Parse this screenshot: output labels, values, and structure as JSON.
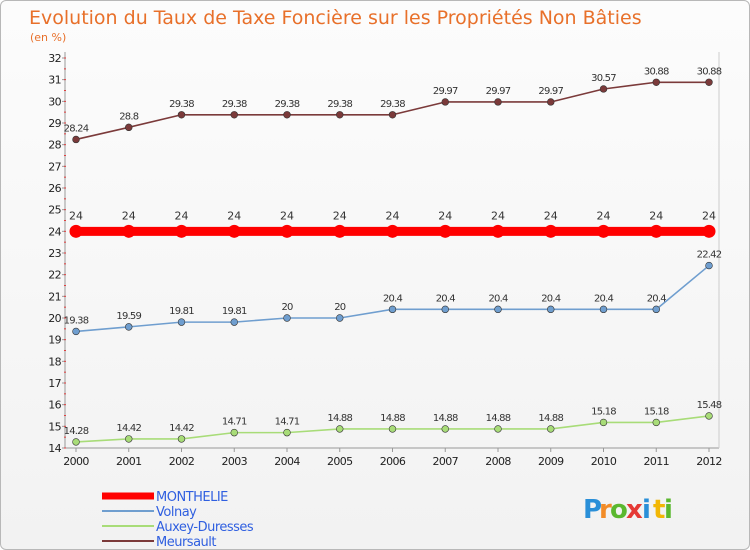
{
  "chart_data": {
    "type": "line",
    "title": "Evolution du Taux de Taxe Foncière sur les Propriétés Non Bâties",
    "subtitle": "(en %)",
    "categories": [
      "2000",
      "2001",
      "2002",
      "2003",
      "2004",
      "2005",
      "2006",
      "2007",
      "2008",
      "2009",
      "2010",
      "2011",
      "2012"
    ],
    "ylim": [
      14,
      32
    ],
    "yticks": [
      14,
      15,
      16,
      17,
      18,
      19,
      20,
      21,
      22,
      23,
      24,
      25,
      26,
      27,
      28,
      29,
      30,
      31,
      32
    ],
    "grid": false,
    "legend_position": "bottom-left",
    "series": [
      {
        "name": "MONTHELIE",
        "color": "#ff0000",
        "values": [
          24,
          24,
          24,
          24,
          24,
          24,
          24,
          24,
          24,
          24,
          24,
          24,
          24
        ],
        "labels": [
          "24",
          "24",
          "24",
          "24",
          "24",
          "24",
          "24",
          "24",
          "24",
          "24",
          "24",
          "24",
          "24"
        ]
      },
      {
        "name": "Volnay",
        "color": "#6f9ecf",
        "values": [
          19.38,
          19.59,
          19.81,
          19.81,
          20,
          20,
          20.4,
          20.4,
          20.4,
          20.4,
          20.4,
          20.4,
          22.42
        ],
        "labels": [
          "19.38",
          "19.59",
          "19.81",
          "19.81",
          "20",
          "20",
          "20.4",
          "20.4",
          "20.4",
          "20.4",
          "20.4",
          "20.4",
          "22.42"
        ]
      },
      {
        "name": "Auxey-Duresses",
        "color": "#a8dc78",
        "values": [
          14.28,
          14.42,
          14.42,
          14.71,
          14.71,
          14.88,
          14.88,
          14.88,
          14.88,
          14.88,
          15.18,
          15.18,
          15.48
        ],
        "labels": [
          "14.28",
          "14.42",
          "14.42",
          "14.71",
          "14.71",
          "14.88",
          "14.88",
          "14.88",
          "14.88",
          "14.88",
          "15.18",
          "15.18",
          "15.48"
        ]
      },
      {
        "name": "Meursault",
        "color": "#7b3a3a",
        "values": [
          28.24,
          28.8,
          29.38,
          29.38,
          29.38,
          29.38,
          29.38,
          29.97,
          29.97,
          29.97,
          30.57,
          30.88,
          30.88
        ],
        "labels": [
          "28.24",
          "28.8",
          "29.38",
          "29.38",
          "29.38",
          "29.38",
          "29.38",
          "29.97",
          "29.97",
          "29.97",
          "30.57",
          "30.88",
          "30.88"
        ]
      }
    ]
  },
  "logo": {
    "letters": [
      "P",
      "r",
      "o",
      "x",
      "i",
      "t",
      "i"
    ],
    "colors": [
      "#2a8fd8",
      "#f28c28",
      "#5bb82f",
      "#e53935",
      "#2a8fd8",
      "#f2b705",
      "#5bb82f"
    ]
  }
}
